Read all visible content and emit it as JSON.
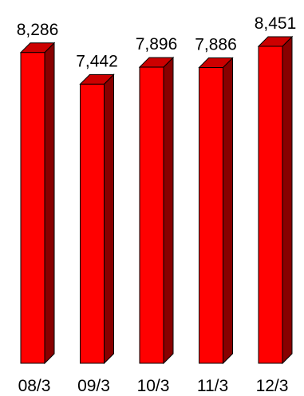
{
  "chart_data": {
    "type": "bar",
    "style": "3d",
    "categories": [
      "08/3",
      "09/3",
      "10/3",
      "11/3",
      "12/3"
    ],
    "values": [
      8286,
      7442,
      7896,
      7886,
      8451
    ],
    "value_labels": [
      "8,286",
      "7,442",
      "7,896",
      "7,886",
      "8,451"
    ],
    "title": "",
    "xlabel": "",
    "ylabel": "",
    "ylim": [
      0,
      8451
    ],
    "grid": false,
    "legend": "none",
    "colors": {
      "bar_front": "#ff0000",
      "bar_top": "#cc0000",
      "bar_side": "#880000",
      "edge": "#000000"
    }
  }
}
